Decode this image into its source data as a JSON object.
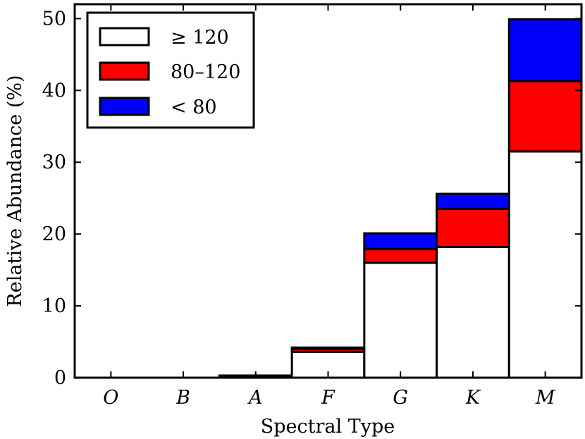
{
  "chart_data": {
    "type": "bar",
    "stacked": true,
    "title": "",
    "xlabel": "Spectral Type",
    "ylabel": "Relative Abundance (%)",
    "ylim": [
      0,
      52
    ],
    "yticks": [
      0,
      10,
      20,
      30,
      40,
      50
    ],
    "categories": [
      "O",
      "B",
      "A",
      "F",
      "G",
      "K",
      "M"
    ],
    "series": [
      {
        "name": "≥ 120",
        "color": "#ffffff",
        "values": [
          0,
          0,
          0.2,
          3.6,
          16.0,
          18.2,
          31.5
        ]
      },
      {
        "name": "80–120",
        "color": "#ff0000",
        "values": [
          0,
          0,
          0.05,
          0.4,
          1.9,
          5.3,
          9.8
        ]
      },
      {
        "name": "< 80",
        "color": "#0000ff",
        "values": [
          0,
          0,
          0.05,
          0.2,
          2.2,
          2.1,
          8.6
        ]
      }
    ],
    "legend_position": "top-left",
    "grid": false
  }
}
